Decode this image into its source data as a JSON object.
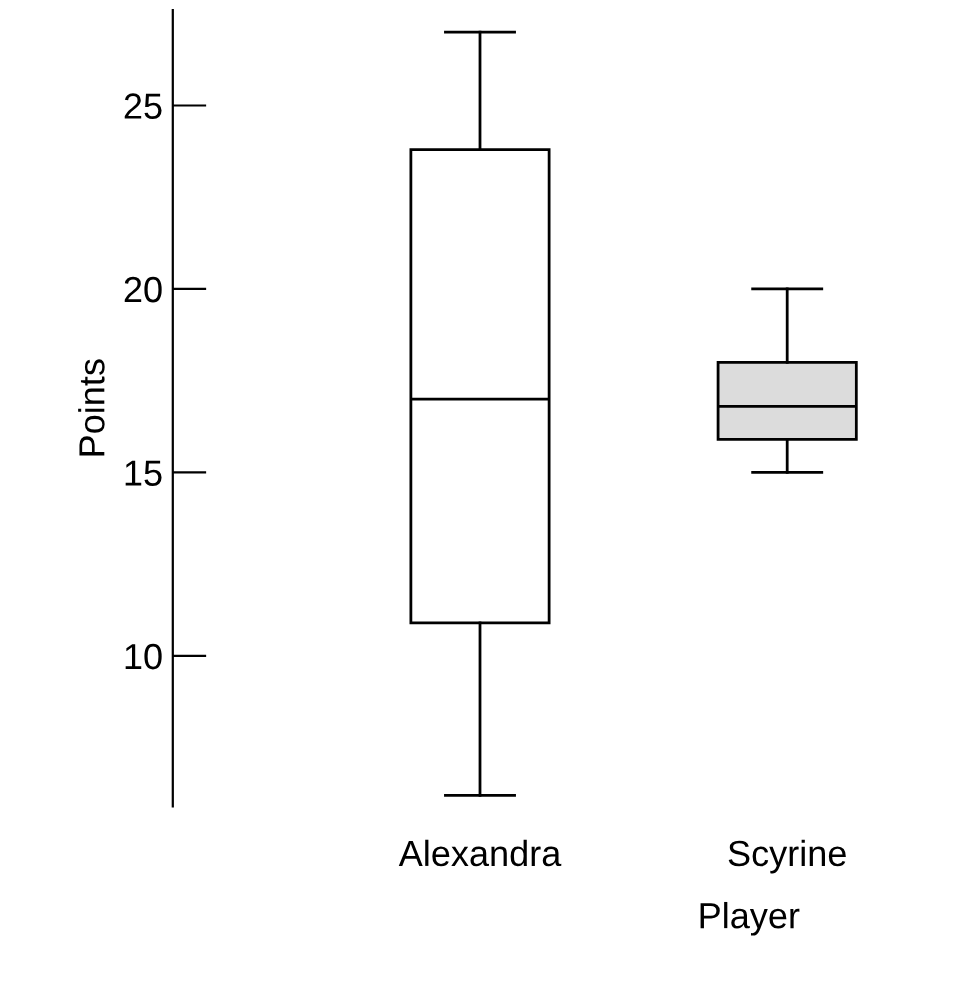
{
  "chart_data": {
    "type": "box",
    "xlabel": "Player",
    "ylabel": "Points",
    "categories": [
      "Alexandra",
      "Scyrine"
    ],
    "colors": [
      "#ffffff",
      "#dcdcdc"
    ],
    "boxes": [
      {
        "low": 6.2,
        "q1": 10.9,
        "median": 17,
        "q3": 23.8,
        "high": 27
      },
      {
        "low": 15,
        "q1": 15.9,
        "median": 16.8,
        "q3": 18,
        "high": 20
      }
    ],
    "ylim": [
      5.9,
      27.6
    ],
    "yticks": [
      10,
      15,
      20,
      25
    ],
    "grid": false,
    "legend": false
  }
}
